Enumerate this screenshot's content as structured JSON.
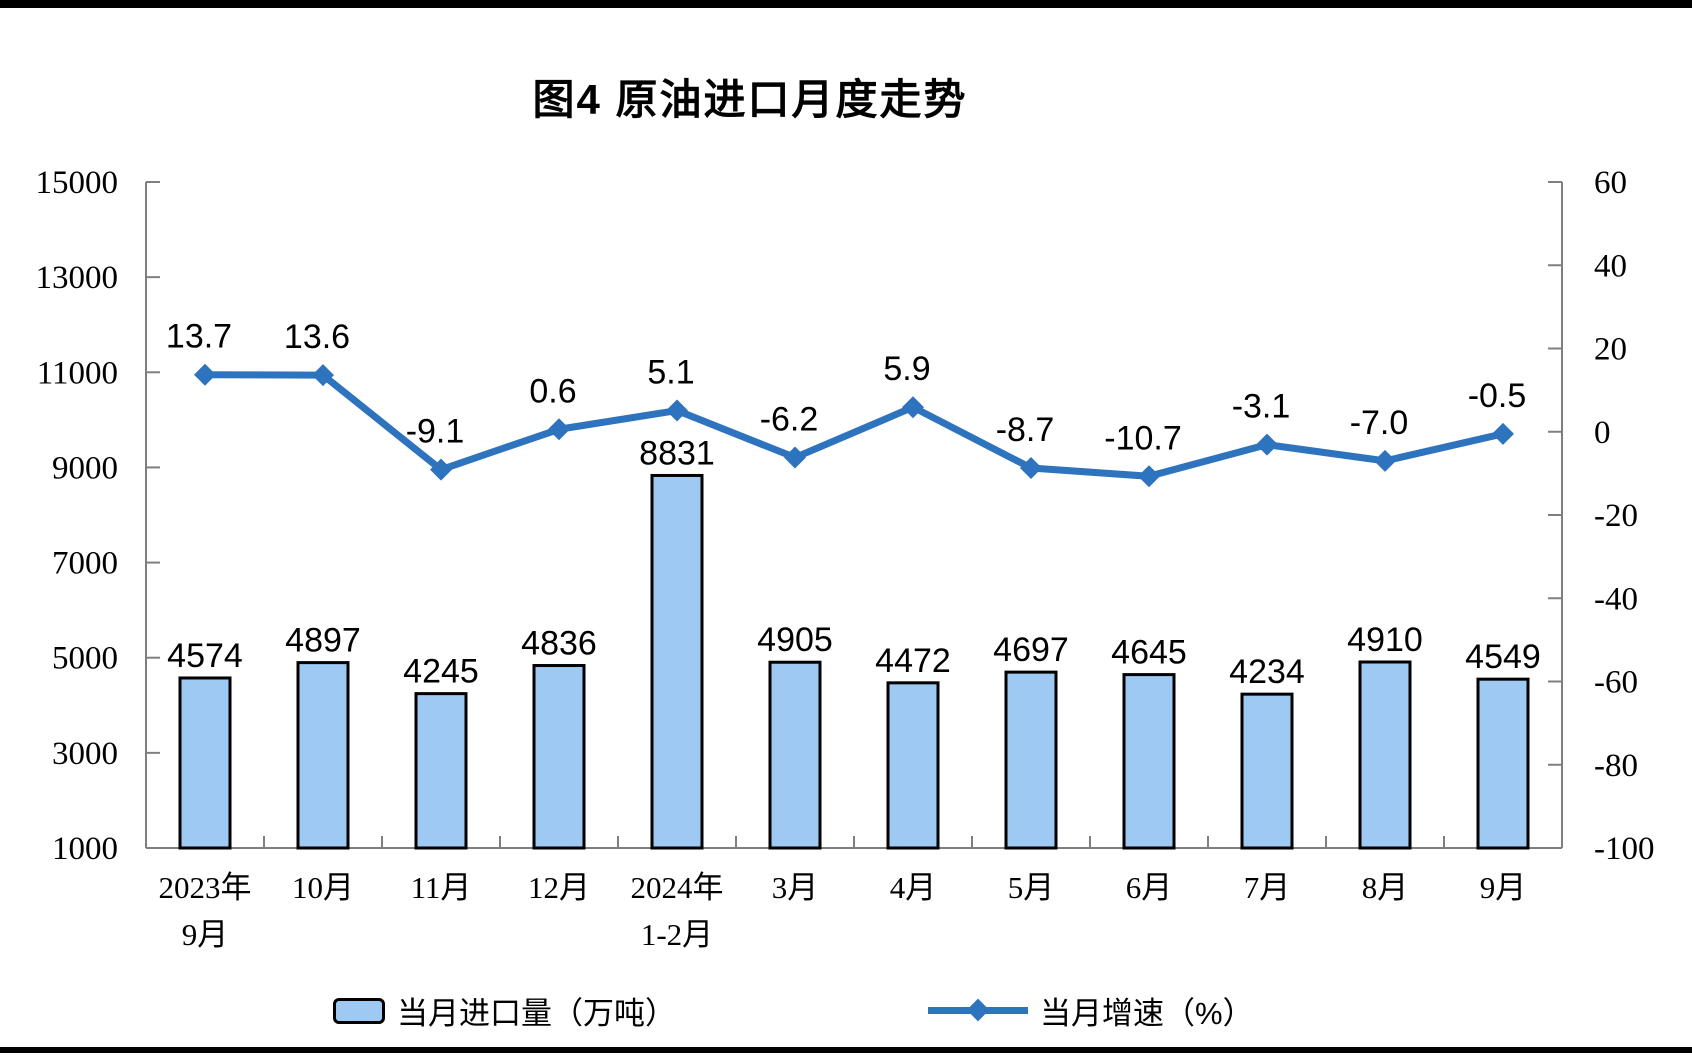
{
  "title": "图4 原油进口月度走势",
  "chart_data": {
    "type": "combo(bar+line)",
    "title": "图4 原油进口月度走势",
    "categories": [
      "2023年\n9月",
      "10月",
      "11月",
      "12月",
      "2024年\n1-2月",
      "3月",
      "4月",
      "5月",
      "6月",
      "7月",
      "8月",
      "9月"
    ],
    "series": [
      {
        "name": "当月进口量（万吨）",
        "type": "bar",
        "axis": "left",
        "values": [
          4574,
          4897,
          4245,
          4836,
          8831,
          4905,
          4472,
          4697,
          4645,
          4234,
          4910,
          4549
        ]
      },
      {
        "name": "当月增速（%）",
        "type": "line",
        "axis": "right",
        "values": [
          13.7,
          13.6,
          -9.1,
          0.6,
          5.1,
          -6.2,
          5.9,
          -8.7,
          -10.7,
          -3.1,
          -7.0,
          -0.5
        ]
      }
    ],
    "left_axis": {
      "min": 1000,
      "max": 15000,
      "ticks": [
        15000,
        13000,
        11000,
        9000,
        7000,
        5000,
        3000,
        1000
      ]
    },
    "right_axis": {
      "min": -100,
      "max": 60,
      "ticks": [
        60,
        40,
        20,
        0,
        -20,
        -40,
        -60,
        -80,
        -100
      ]
    },
    "grid": false,
    "data_labels": true,
    "legend_position": "bottom"
  },
  "legend": {
    "items": [
      {
        "label": "当月进口量（万吨）",
        "swatch": "bar"
      },
      {
        "label": "当月增速（%）",
        "swatch": "line"
      }
    ]
  },
  "colors": {
    "bar_fill": "#9DC9F2",
    "bar_stroke": "#000000",
    "line": "#2E73BE",
    "axis": "#7F7F7F",
    "text": "#000000",
    "frame": "#000000"
  }
}
